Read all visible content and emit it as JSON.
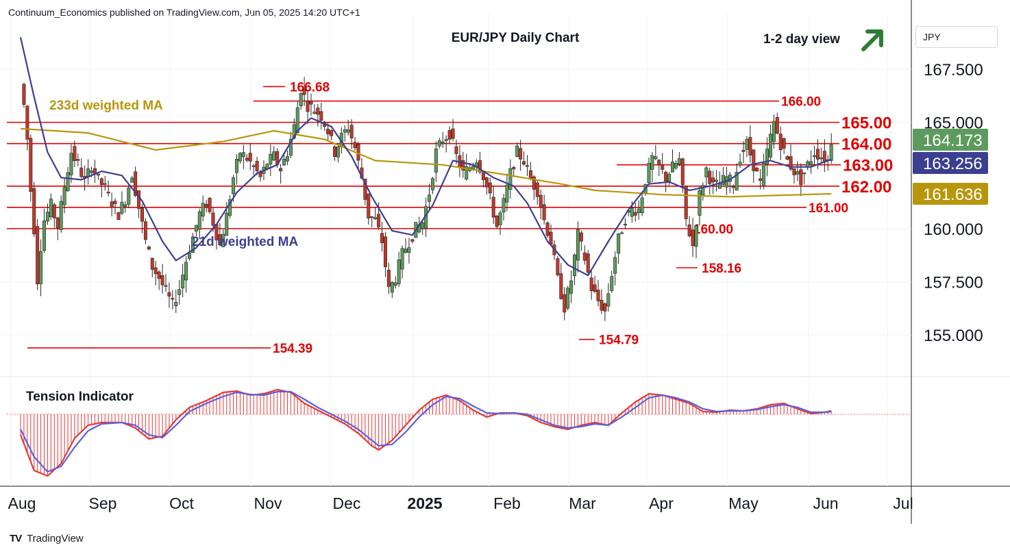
{
  "header": {
    "publisher_line": "Continuum_Economics published on TradingView.com, Jun 05, 2025 14:20 UTC+1"
  },
  "footer": {
    "brand": "TradingView",
    "logo": "tradingview-logo-icon"
  },
  "axis": {
    "currency": "JPY"
  },
  "colors": {
    "up": "#5d9a5d",
    "down": "#c0392b",
    "ma21": "#3b3f8f",
    "ma233": "#b8960c",
    "level": "#e00000",
    "arrow": "#2e7d32",
    "tension_red": "#e53935",
    "tension_blue": "#5b5fdb"
  },
  "chart_data": [
    {
      "type": "candlestick",
      "title": "EUR/JPY Daily Chart",
      "view_label": "1-2 day view",
      "view_icon": "up-arrow-icon",
      "ylim": [
        153.3,
        169.3
      ],
      "y_ticks": [
        "167.500",
        "165.000",
        "160.000",
        "157.500",
        "155.000"
      ],
      "y_tick_values": [
        167.5,
        165.0,
        160.0,
        157.5,
        155.0
      ],
      "x_ticks": [
        "Aug",
        "Sep",
        "Oct",
        "Nov",
        "Dec",
        "2025",
        "Feb",
        "Mar",
        "Apr",
        "May",
        "Jun",
        "Jul"
      ],
      "price_labels": [
        {
          "value": 164.173,
          "text": "164.173",
          "color": "#5d9a5d"
        },
        {
          "value": 163.256,
          "text": "163.256",
          "color": "#3b3f8f"
        },
        {
          "value": 161.636,
          "text": "161.636",
          "color": "#b8960c"
        }
      ],
      "levels": [
        {
          "value": 165.0,
          "text": "165.00"
        },
        {
          "value": 164.0,
          "text": "164.00"
        },
        {
          "value": 163.0,
          "text": "163.00"
        },
        {
          "value": 162.0,
          "text": "162.00"
        },
        {
          "value": 161.0,
          "text": "161.00"
        },
        {
          "value": 160.0,
          "text": "160.00"
        },
        {
          "value": 166.0,
          "text": "166.00"
        }
      ],
      "extremes": [
        {
          "value": 166.68,
          "text": "166.68"
        },
        {
          "value": 154.39,
          "text": "154.39"
        },
        {
          "value": 154.79,
          "text": "154.79"
        },
        {
          "value": 158.16,
          "text": "158.16"
        }
      ],
      "series_labels": [
        "233d weighted MA",
        "21d weighted MA"
      ],
      "price_path": [
        [
          0,
          166.8
        ],
        [
          1,
          165.8
        ],
        [
          2,
          164.2
        ],
        [
          3,
          161.8
        ],
        [
          4,
          160.0
        ],
        [
          5,
          157.6
        ],
        [
          6,
          159.2
        ],
        [
          7,
          160.4
        ],
        [
          9,
          161.1
        ],
        [
          11,
          160.1
        ],
        [
          13,
          162.0
        ],
        [
          15,
          163.6
        ],
        [
          17,
          163.0
        ],
        [
          19,
          162.2
        ],
        [
          21,
          163.0
        ],
        [
          23,
          162.3
        ],
        [
          25,
          161.9
        ],
        [
          27,
          161.2
        ],
        [
          29,
          160.7
        ],
        [
          31,
          161.4
        ],
        [
          33,
          162.6
        ],
        [
          35,
          161.0
        ],
        [
          37,
          159.4
        ],
        [
          39,
          158.2
        ],
        [
          41,
          157.7
        ],
        [
          43,
          157.0
        ],
        [
          45,
          156.4
        ],
        [
          47,
          157.2
        ],
        [
          49,
          158.5
        ],
        [
          51,
          159.6
        ],
        [
          53,
          160.7
        ],
        [
          55,
          161.2
        ],
        [
          57,
          160.3
        ],
        [
          59,
          159.2
        ],
        [
          61,
          160.6
        ],
        [
          63,
          162.4
        ],
        [
          65,
          163.6
        ],
        [
          67,
          163.3
        ],
        [
          69,
          162.9
        ],
        [
          71,
          162.4
        ],
        [
          73,
          163.1
        ],
        [
          75,
          163.4
        ],
        [
          77,
          162.8
        ],
        [
          79,
          163.6
        ],
        [
          81,
          164.8
        ],
        [
          83,
          166.6
        ],
        [
          85,
          165.8
        ],
        [
          87,
          165.6
        ],
        [
          89,
          165.3
        ],
        [
          91,
          164.6
        ],
        [
          93,
          163.6
        ],
        [
          95,
          164.3
        ],
        [
          97,
          164.8
        ],
        [
          99,
          163.8
        ],
        [
          101,
          162.4
        ],
        [
          103,
          160.6
        ],
        [
          105,
          160.4
        ],
        [
          107,
          159.4
        ],
        [
          109,
          157.1
        ],
        [
          111,
          157.7
        ],
        [
          113,
          158.8
        ],
        [
          115,
          159.4
        ],
        [
          117,
          160.0
        ],
        [
          119,
          160.3
        ],
        [
          121,
          161.7
        ],
        [
          123,
          163.6
        ],
        [
          125,
          164.2
        ],
        [
          127,
          164.5
        ],
        [
          129,
          163.4
        ],
        [
          131,
          162.6
        ],
        [
          133,
          162.9
        ],
        [
          135,
          163.3
        ],
        [
          137,
          162.5
        ],
        [
          139,
          161.4
        ],
        [
          141,
          160.1
        ],
        [
          143,
          161.2
        ],
        [
          145,
          162.6
        ],
        [
          147,
          163.6
        ],
        [
          149,
          163.2
        ],
        [
          151,
          162.3
        ],
        [
          153,
          161.8
        ],
        [
          155,
          160.4
        ],
        [
          157,
          159.4
        ],
        [
          159,
          157.6
        ],
        [
          161,
          156.3
        ],
        [
          163,
          157.6
        ],
        [
          165,
          159.7
        ],
        [
          167,
          158.6
        ],
        [
          169,
          157.2
        ],
        [
          171,
          156.6
        ],
        [
          173,
          156.1
        ],
        [
          175,
          157.9
        ],
        [
          177,
          159.5
        ],
        [
          179,
          160.5
        ],
        [
          181,
          160.9
        ],
        [
          183,
          160.9
        ],
        [
          185,
          162.3
        ],
        [
          187,
          163.3
        ],
        [
          189,
          162.9
        ],
        [
          191,
          162.4
        ],
        [
          193,
          162.9
        ],
        [
          195,
          163.2
        ],
        [
          197,
          160.4
        ],
        [
          199,
          159.2
        ],
        [
          201,
          161.6
        ],
        [
          203,
          162.8
        ],
        [
          205,
          162.0
        ],
        [
          207,
          162.1
        ],
        [
          209,
          162.4
        ],
        [
          211,
          162.1
        ],
        [
          213,
          163.4
        ],
        [
          215,
          164.0
        ],
        [
          217,
          163.0
        ],
        [
          219,
          162.1
        ],
        [
          221,
          163.6
        ],
        [
          223,
          165.0
        ],
        [
          225,
          164.0
        ],
        [
          227,
          163.2
        ],
        [
          229,
          162.7
        ],
        [
          231,
          162.3
        ],
        [
          233,
          163.0
        ],
        [
          235,
          163.6
        ],
        [
          237,
          163.4
        ],
        [
          239,
          163.2
        ],
        [
          240,
          164.17
        ]
      ],
      "ma21_path": [
        [
          0,
          169.0
        ],
        [
          4,
          166.2
        ],
        [
          8,
          163.6
        ],
        [
          12,
          162.4
        ],
        [
          18,
          162.3
        ],
        [
          24,
          162.7
        ],
        [
          30,
          162.5
        ],
        [
          36,
          161.3
        ],
        [
          42,
          159.4
        ],
        [
          46,
          158.5
        ],
        [
          52,
          159.1
        ],
        [
          58,
          160.2
        ],
        [
          64,
          161.7
        ],
        [
          70,
          162.6
        ],
        [
          76,
          163.0
        ],
        [
          82,
          164.6
        ],
        [
          86,
          165.2
        ],
        [
          92,
          164.8
        ],
        [
          98,
          163.4
        ],
        [
          104,
          161.5
        ],
        [
          110,
          159.9
        ],
        [
          116,
          159.7
        ],
        [
          122,
          161.1
        ],
        [
          128,
          163.2
        ],
        [
          134,
          163.0
        ],
        [
          140,
          162.4
        ],
        [
          146,
          162.0
        ],
        [
          150,
          161.2
        ],
        [
          156,
          159.4
        ],
        [
          162,
          158.3
        ],
        [
          168,
          157.8
        ],
        [
          174,
          159.4
        ],
        [
          180,
          160.9
        ],
        [
          186,
          162.1
        ],
        [
          192,
          162.2
        ],
        [
          198,
          161.8
        ],
        [
          204,
          162.0
        ],
        [
          210,
          162.3
        ],
        [
          216,
          163.0
        ],
        [
          222,
          163.2
        ],
        [
          228,
          162.9
        ],
        [
          234,
          162.9
        ],
        [
          240,
          163.26
        ]
      ],
      "ma233_path": [
        [
          0,
          164.7
        ],
        [
          20,
          164.5
        ],
        [
          40,
          163.7
        ],
        [
          60,
          164.1
        ],
        [
          75,
          164.6
        ],
        [
          90,
          164.2
        ],
        [
          105,
          163.2
        ],
        [
          125,
          163.0
        ],
        [
          145,
          162.5
        ],
        [
          160,
          162.1
        ],
        [
          170,
          161.8
        ],
        [
          190,
          161.6
        ],
        [
          210,
          161.5
        ],
        [
          240,
          161.64
        ]
      ]
    },
    {
      "type": "oscillator",
      "title": "Tension Indicator",
      "ylim": [
        -1.0,
        0.45
      ],
      "red_path": [
        [
          0,
          -0.3
        ],
        [
          4,
          -0.82
        ],
        [
          8,
          -0.9
        ],
        [
          12,
          -0.72
        ],
        [
          16,
          -0.35
        ],
        [
          20,
          -0.16
        ],
        [
          24,
          -0.12
        ],
        [
          30,
          -0.12
        ],
        [
          34,
          -0.2
        ],
        [
          38,
          -0.36
        ],
        [
          42,
          -0.32
        ],
        [
          46,
          -0.08
        ],
        [
          50,
          0.1
        ],
        [
          55,
          0.2
        ],
        [
          60,
          0.32
        ],
        [
          64,
          0.34
        ],
        [
          68,
          0.28
        ],
        [
          72,
          0.3
        ],
        [
          76,
          0.36
        ],
        [
          80,
          0.32
        ],
        [
          84,
          0.16
        ],
        [
          88,
          0.06
        ],
        [
          92,
          -0.04
        ],
        [
          96,
          -0.14
        ],
        [
          100,
          -0.28
        ],
        [
          104,
          -0.46
        ],
        [
          106,
          -0.52
        ],
        [
          110,
          -0.38
        ],
        [
          114,
          -0.16
        ],
        [
          118,
          0.06
        ],
        [
          122,
          0.22
        ],
        [
          126,
          0.28
        ],
        [
          130,
          0.2
        ],
        [
          134,
          0.06
        ],
        [
          138,
          -0.04
        ],
        [
          142,
          0.02
        ],
        [
          146,
          0.02
        ],
        [
          150,
          -0.02
        ],
        [
          154,
          -0.12
        ],
        [
          158,
          -0.18
        ],
        [
          162,
          -0.22
        ],
        [
          166,
          -0.16
        ],
        [
          170,
          -0.12
        ],
        [
          174,
          -0.16
        ],
        [
          178,
          0.02
        ],
        [
          182,
          0.18
        ],
        [
          186,
          0.3
        ],
        [
          190,
          0.28
        ],
        [
          194,
          0.22
        ],
        [
          198,
          0.16
        ],
        [
          202,
          0.04
        ],
        [
          206,
          0.03
        ],
        [
          210,
          0.06
        ],
        [
          214,
          0.05
        ],
        [
          218,
          0.08
        ],
        [
          222,
          0.14
        ],
        [
          226,
          0.16
        ],
        [
          230,
          0.08
        ],
        [
          234,
          0.01
        ],
        [
          238,
          0.03
        ],
        [
          240,
          0.05
        ]
      ],
      "blue_path": [
        [
          0,
          -0.22
        ],
        [
          4,
          -0.62
        ],
        [
          8,
          -0.84
        ],
        [
          12,
          -0.76
        ],
        [
          16,
          -0.48
        ],
        [
          20,
          -0.24
        ],
        [
          24,
          -0.14
        ],
        [
          30,
          -0.12
        ],
        [
          34,
          -0.16
        ],
        [
          38,
          -0.3
        ],
        [
          42,
          -0.34
        ],
        [
          46,
          -0.16
        ],
        [
          50,
          0.04
        ],
        [
          55,
          0.16
        ],
        [
          60,
          0.26
        ],
        [
          64,
          0.32
        ],
        [
          68,
          0.29
        ],
        [
          72,
          0.28
        ],
        [
          76,
          0.33
        ],
        [
          80,
          0.33
        ],
        [
          84,
          0.22
        ],
        [
          88,
          0.1
        ],
        [
          92,
          0.0
        ],
        [
          96,
          -0.1
        ],
        [
          100,
          -0.22
        ],
        [
          104,
          -0.38
        ],
        [
          106,
          -0.46
        ],
        [
          110,
          -0.44
        ],
        [
          114,
          -0.26
        ],
        [
          118,
          -0.04
        ],
        [
          122,
          0.14
        ],
        [
          126,
          0.26
        ],
        [
          130,
          0.23
        ],
        [
          134,
          0.12
        ],
        [
          138,
          0.02
        ],
        [
          142,
          0.01
        ],
        [
          146,
          0.02
        ],
        [
          150,
          0.0
        ],
        [
          154,
          -0.08
        ],
        [
          158,
          -0.16
        ],
        [
          162,
          -0.2
        ],
        [
          166,
          -0.18
        ],
        [
          170,
          -0.14
        ],
        [
          174,
          -0.16
        ],
        [
          178,
          -0.04
        ],
        [
          182,
          0.1
        ],
        [
          186,
          0.24
        ],
        [
          190,
          0.28
        ],
        [
          194,
          0.24
        ],
        [
          198,
          0.18
        ],
        [
          202,
          0.08
        ],
        [
          206,
          0.04
        ],
        [
          210,
          0.05
        ],
        [
          214,
          0.05
        ],
        [
          218,
          0.07
        ],
        [
          222,
          0.11
        ],
        [
          226,
          0.14
        ],
        [
          230,
          0.1
        ],
        [
          234,
          0.03
        ],
        [
          238,
          0.03
        ],
        [
          240,
          0.04
        ]
      ]
    }
  ]
}
